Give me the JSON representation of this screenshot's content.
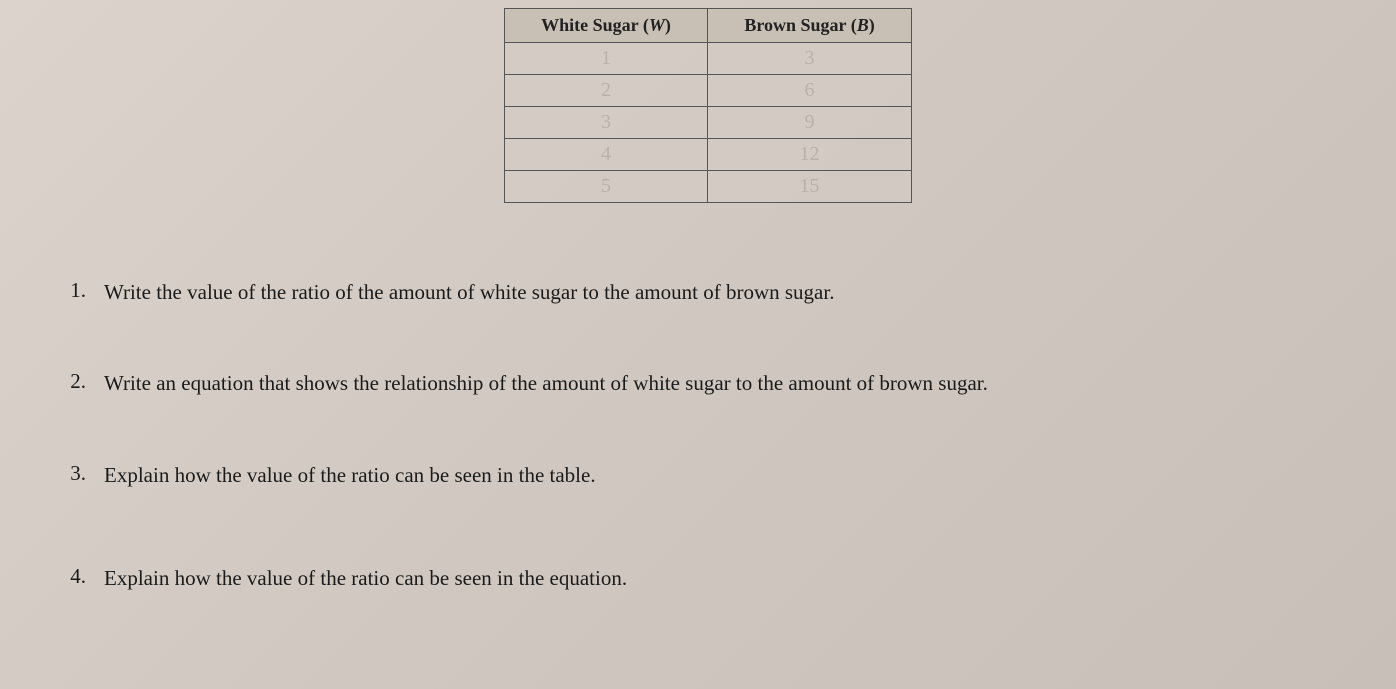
{
  "table": {
    "headers": {
      "col1_prefix": "White Sugar (",
      "col1_var": "W",
      "col1_suffix": ")",
      "col2_prefix": "Brown Sugar (",
      "col2_var": "B",
      "col2_suffix": ")"
    },
    "rows": [
      {
        "w": "1",
        "b": "3"
      },
      {
        "w": "2",
        "b": "6"
      },
      {
        "w": "3",
        "b": "9"
      },
      {
        "w": "4",
        "b": "12"
      },
      {
        "w": "5",
        "b": "15"
      }
    ],
    "header_bg": "#c8c0b4",
    "cell_bg": "#d4ccc4",
    "border_color": "#555555",
    "handwriting_color": "#b0a8a0"
  },
  "questions": {
    "q1": {
      "num": "1.",
      "text": "Write the value of the ratio of the amount of white sugar to the amount of brown sugar."
    },
    "q2": {
      "num": "2.",
      "text": "Write an equation that shows the relationship of the amount of white sugar to the amount of brown sugar."
    },
    "q3": {
      "num": "3.",
      "text": "Explain how the value of the ratio can be seen in the table."
    },
    "q4": {
      "num": "4.",
      "text": "Explain how the value of the ratio can be seen in the equation."
    }
  },
  "page": {
    "background_color": "#d8d0c8",
    "text_color": "#1a1a1a",
    "font_size": 21
  }
}
